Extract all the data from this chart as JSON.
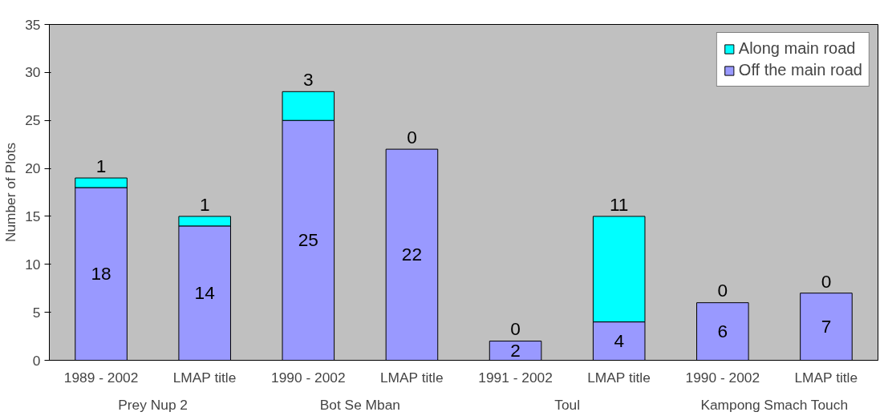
{
  "chart_data": {
    "type": "bar",
    "stacked": true,
    "ylabel": "Number of Plots",
    "categories": [
      "1989 - 2002",
      "LMAP title",
      "1990 - 2002",
      "LMAP title",
      "1991 - 2002",
      "LMAP title",
      "1990 - 2002",
      "LMAP title"
    ],
    "annotations": [
      "Prey Nup 2",
      "Bot Se Mban",
      "Toul",
      "Kampong Smach Touch"
    ],
    "series": [
      {
        "name": "Off the main road",
        "color": "#9999ff",
        "values": [
          18,
          14,
          25,
          22,
          2,
          4,
          6,
          7
        ]
      },
      {
        "name": "Along main road",
        "color": "#00ffff",
        "values": [
          1,
          1,
          3,
          0,
          0,
          11,
          0,
          0
        ]
      }
    ],
    "ylim": [
      0,
      35
    ],
    "yticks": [
      0,
      5,
      10,
      15,
      20,
      25,
      30,
      35
    ],
    "data_labels": true,
    "legend": "top right",
    "grid": false
  }
}
